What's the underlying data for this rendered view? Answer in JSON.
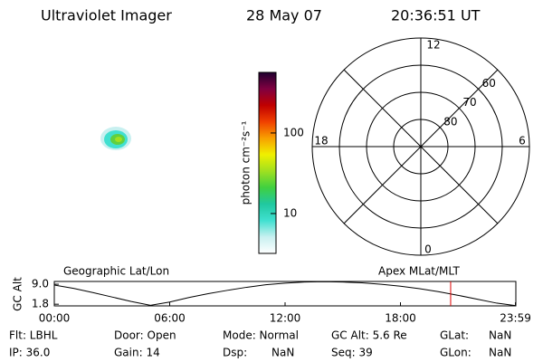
{
  "header": {
    "title": "Ultraviolet Imager",
    "date": "28 May 07",
    "time": "20:36:51 UT"
  },
  "colorbar": {
    "label": "photon cm⁻²s⁻¹",
    "log": true,
    "lim": [
      3.2,
      565
    ],
    "ticks": [
      10,
      100
    ],
    "colors": [
      "#ffffff",
      "#c8f0f0",
      "#40e0d0",
      "#20c8a0",
      "#40d040",
      "#a0e020",
      "#f0f000",
      "#f8a000",
      "#f04000",
      "#c00000",
      "#800040",
      "#200030"
    ]
  },
  "polar": {
    "rlim": [
      90,
      50
    ],
    "rings": [
      80,
      70,
      60
    ],
    "hours": [
      "12",
      "18",
      "6",
      "0"
    ]
  },
  "chart_data": {
    "type": "line",
    "ylabel": "GC Alt",
    "left_label": "Geographic Lat/Lon",
    "right_label": "Apex MLat/MLT",
    "x": [
      0,
      1,
      2,
      3,
      4,
      5,
      6,
      7,
      8,
      9,
      10,
      11,
      12,
      13,
      14,
      15,
      16,
      17,
      18,
      19,
      20,
      21,
      22,
      23,
      24
    ],
    "series": [
      {
        "color": "#000000",
        "values": [
          8.7,
          7.5,
          6.0,
          4.4,
          2.8,
          1.4,
          2.6,
          4.2,
          5.6,
          6.8,
          7.9,
          8.8,
          9.4,
          9.8,
          9.9,
          9.8,
          9.5,
          9.0,
          8.3,
          7.4,
          6.3,
          5.0,
          3.6,
          2.2,
          1.3
        ]
      }
    ],
    "xlim": [
      0,
      24
    ],
    "ylim": [
      1.2,
      10.0
    ],
    "xticks": [
      {
        "value": 0,
        "label": "00:00"
      },
      {
        "value": 6,
        "label": "06:00"
      },
      {
        "value": 12,
        "label": "12:00"
      },
      {
        "value": 18,
        "label": "18:00"
      },
      {
        "value": 23.98,
        "label": "23:59"
      }
    ],
    "yticks": [
      {
        "value": 9.0,
        "label": "9.0"
      },
      1.8
    ],
    "marker": {
      "x": 20.61,
      "color": "#e00000"
    }
  },
  "info": [
    [
      "Flt: LBHL",
      "Door: Open",
      "Mode: Normal",
      "GC Alt: 5.6 Re",
      "GLat:",
      "NaN"
    ],
    [
      "IP: 36.0",
      "Gain: 14",
      "Dsp:",
      "NaN",
      "Seq: 39",
      "GLon:",
      "NaN"
    ]
  ]
}
